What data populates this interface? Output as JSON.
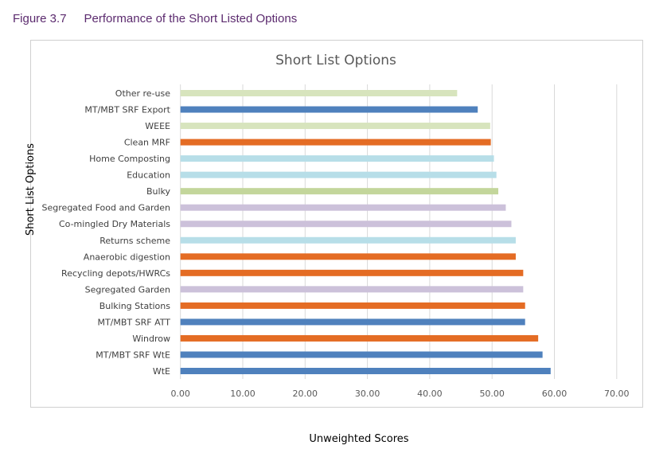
{
  "caption": {
    "number": "Figure 3.7",
    "text": "Performance of the Short Listed Options"
  },
  "chart_data": {
    "type": "bar",
    "orientation": "horizontal",
    "title": "Short List Options",
    "xlabel": "Unweighted Scores",
    "ylabel": "Short List Options",
    "xlim": [
      0,
      70
    ],
    "xticks": [
      "0.00",
      "10.00",
      "20.00",
      "30.00",
      "40.00",
      "50.00",
      "60.00",
      "70.00"
    ],
    "grid": true,
    "categories": [
      "Other re-use",
      "MT/MBT SRF Export",
      "WEEE",
      "Clean MRF",
      "Home Composting",
      "Education",
      "Bulky",
      "Segregated Food and Garden",
      "Co-mingled Dry Materials",
      "Returns scheme",
      "Anaerobic digestion",
      "Recycling depots/HWRCs",
      "Segregated Garden",
      "Bulking Stations",
      "MT/MBT SRF ATT",
      "Windrow",
      "MT/MBT SRF WtE",
      "WtE"
    ],
    "values": [
      44.4,
      47.7,
      49.7,
      49.8,
      50.3,
      50.7,
      51.0,
      52.2,
      53.1,
      53.8,
      53.8,
      55.0,
      55.0,
      55.3,
      55.3,
      57.4,
      58.1,
      59.4
    ],
    "colors": [
      "#d7e4bd",
      "#4f81bd",
      "#d7e4bd",
      "#e46c24",
      "#b7dee8",
      "#b7dee8",
      "#c3d69b",
      "#ccc1da",
      "#ccc1da",
      "#b7dee8",
      "#e46c24",
      "#e46c24",
      "#ccc1da",
      "#e46c24",
      "#4f81bd",
      "#e46c24",
      "#4f81bd",
      "#4f81bd"
    ]
  }
}
